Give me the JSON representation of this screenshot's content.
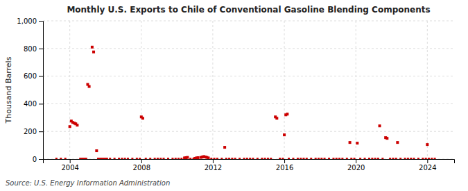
{
  "chart_data": {
    "type": "scatter",
    "title": "Monthly U.S. Exports to Chile of Conventional Gasoline Blending Components",
    "ylabel": "Thousand Barrels",
    "annotations": [
      "Source: U.S. Energy Information Administration"
    ],
    "xlim": [
      2002.5,
      2025.5
    ],
    "xticks": [
      2004,
      2008,
      2012,
      2016,
      2020,
      2024
    ],
    "ylim": [
      0,
      1000
    ],
    "yticks": [
      0,
      200,
      400,
      600,
      800,
      {
        "value": 1000,
        "label": "1,000"
      }
    ],
    "grid": true,
    "series": [
      {
        "color": "#cc0000",
        "marker": "square",
        "x": [
          2004.0,
          2004.083,
          2004.167,
          2004.25,
          2004.333,
          2004.417,
          2005.0,
          2005.083,
          2005.25,
          2005.333,
          2005.5,
          2008.0,
          2008.083,
          2010.417,
          2010.5,
          2010.583,
          2011.0,
          2011.083,
          2011.167,
          2011.333,
          2011.417,
          2011.5,
          2011.583,
          2011.667,
          2011.75,
          2012.667,
          2015.5,
          2015.583,
          2016.0,
          2016.083,
          2016.167,
          2019.667,
          2020.083,
          2021.333,
          2021.667,
          2021.75,
          2022.333,
          2024.0
        ],
        "values": [
          235,
          275,
          265,
          260,
          255,
          245,
          540,
          525,
          810,
          775,
          60,
          305,
          295,
          8,
          10,
          12,
          5,
          8,
          10,
          12,
          15,
          18,
          15,
          12,
          8,
          85,
          305,
          295,
          175,
          320,
          325,
          120,
          115,
          240,
          155,
          150,
          120,
          105
        ]
      },
      {
        "color": "#cc0000",
        "marker": "square",
        "x": [
          2003.25,
          2003.5,
          2003.75,
          2004.583,
          2004.667,
          2004.75,
          2004.833,
          2004.917,
          2005.583,
          2005.667,
          2005.75,
          2005.833,
          2005.917,
          2006.0,
          2006.083,
          2006.25,
          2006.5,
          2006.75,
          2006.917,
          2007.083,
          2007.25,
          2007.5,
          2007.75,
          2007.917,
          2008.25,
          2008.5,
          2008.75,
          2008.917,
          2009.083,
          2009.25,
          2009.5,
          2009.75,
          2009.917,
          2010.083,
          2010.25,
          2010.75,
          2010.917,
          2011.917,
          2012.083,
          2012.25,
          2012.5,
          2012.75,
          2012.917,
          2013.083,
          2013.25,
          2013.5,
          2013.75,
          2013.917,
          2014.083,
          2014.25,
          2014.5,
          2014.75,
          2014.917,
          2015.083,
          2015.25,
          2015.75,
          2015.917,
          2016.25,
          2016.5,
          2016.75,
          2016.917,
          2017.083,
          2017.25,
          2017.5,
          2017.75,
          2017.917,
          2018.083,
          2018.25,
          2018.5,
          2018.75,
          2018.917,
          2019.083,
          2019.25,
          2019.5,
          2019.75,
          2019.917,
          2020.25,
          2020.5,
          2020.75,
          2020.917,
          2021.083,
          2021.25,
          2021.5,
          2021.917,
          2022.083,
          2022.25,
          2022.5,
          2022.75,
          2022.917,
          2023.083,
          2023.25,
          2023.5,
          2023.75,
          2023.917,
          2024.083,
          2024.25,
          2024.417
        ],
        "values": [
          2,
          2,
          2,
          2,
          2,
          2,
          2,
          2,
          2,
          2,
          2,
          2,
          2,
          2,
          2,
          2,
          2,
          2,
          2,
          2,
          2,
          2,
          2,
          2,
          2,
          2,
          2,
          2,
          2,
          2,
          2,
          2,
          2,
          2,
          2,
          2,
          2,
          2,
          2,
          2,
          2,
          2,
          2,
          2,
          2,
          2,
          2,
          2,
          2,
          2,
          2,
          2,
          2,
          2,
          2,
          2,
          2,
          2,
          2,
          2,
          2,
          2,
          2,
          2,
          2,
          2,
          2,
          2,
          2,
          2,
          2,
          2,
          2,
          2,
          2,
          2,
          2,
          2,
          2,
          2,
          2,
          2,
          2,
          2,
          2,
          2,
          2,
          2,
          2,
          2,
          2,
          2,
          2,
          2,
          2,
          2,
          2
        ]
      }
    ]
  }
}
